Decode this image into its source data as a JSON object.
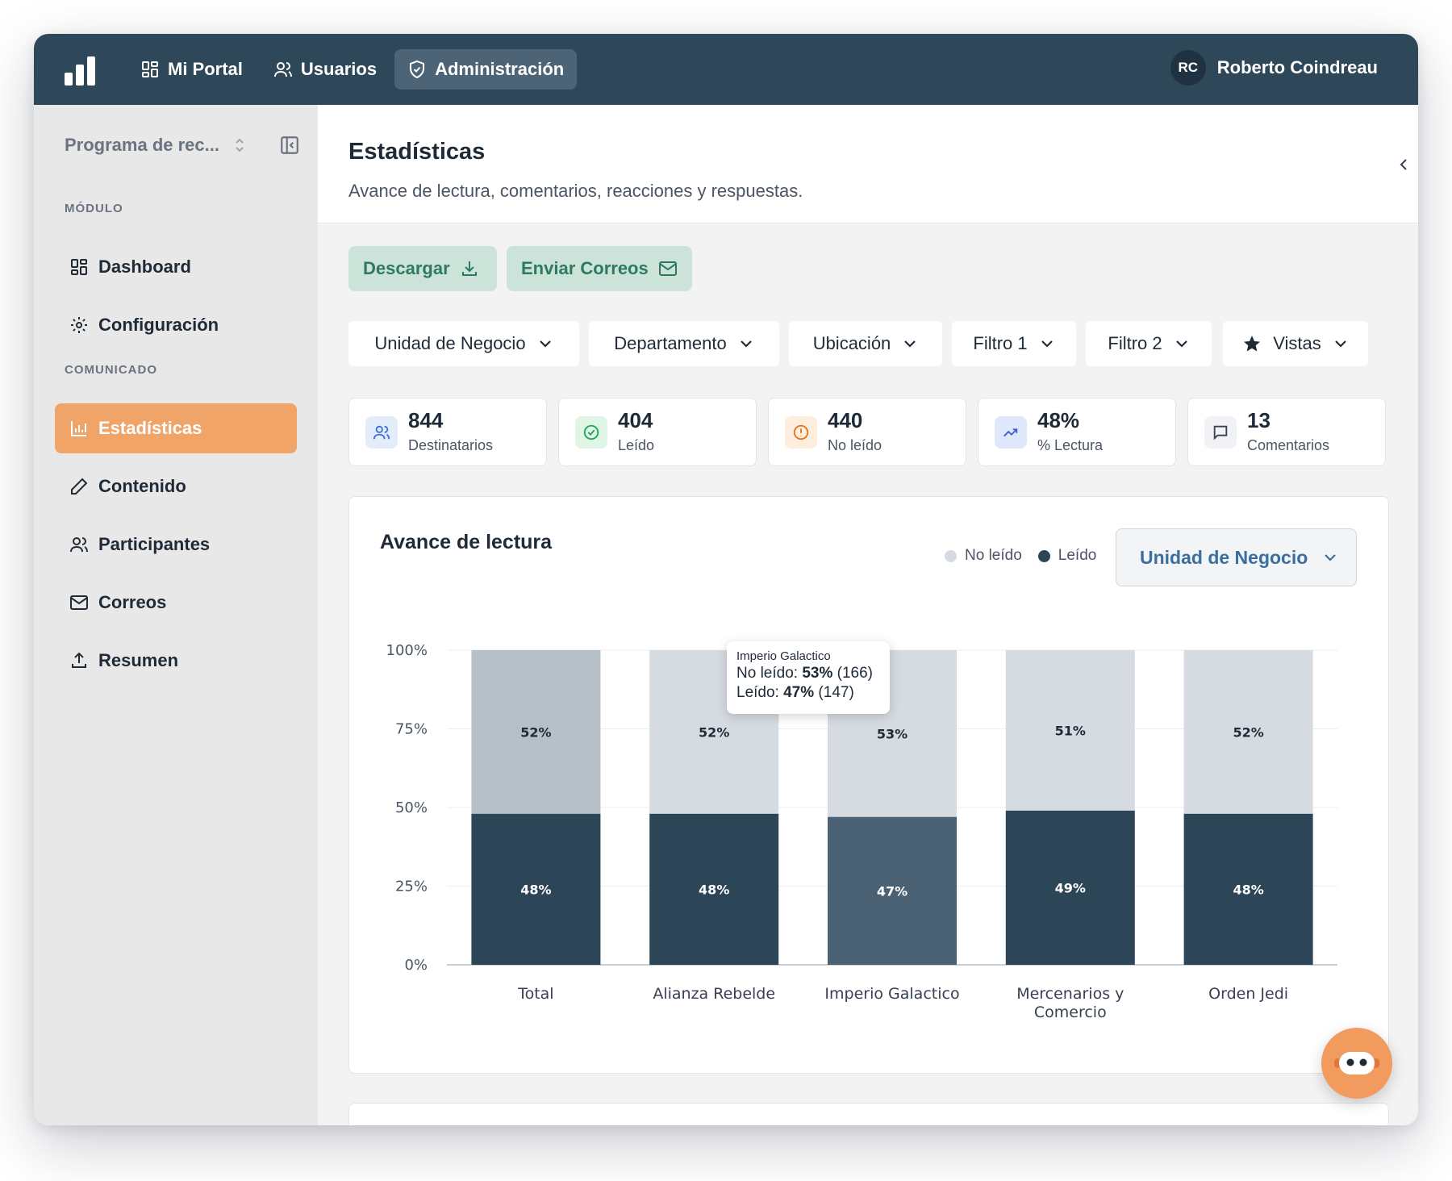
{
  "topbar": {
    "nav": [
      {
        "label": "Mi Portal",
        "icon": "grid-icon"
      },
      {
        "label": "Usuarios",
        "icon": "users-icon"
      },
      {
        "label": "Administración",
        "icon": "shield-check-icon"
      }
    ],
    "user": {
      "initials": "RC",
      "name": "Roberto Coindreau"
    }
  },
  "sidebar": {
    "program": "Programa de rec...",
    "sections": [
      {
        "label": "MÓDULO"
      },
      {
        "label": "COMUNICADO"
      }
    ],
    "items": [
      {
        "label": "Dashboard",
        "icon": "dashboard-icon"
      },
      {
        "label": "Configuración",
        "icon": "gear-icon"
      },
      {
        "label": "Estadísticas",
        "icon": "bar-chart-icon"
      },
      {
        "label": "Contenido",
        "icon": "pencil-icon"
      },
      {
        "label": "Participantes",
        "icon": "users-icon"
      },
      {
        "label": "Correos",
        "icon": "mail-icon"
      },
      {
        "label": "Resumen",
        "icon": "upload-icon"
      }
    ],
    "active_item": "Estadísticas"
  },
  "header": {
    "title": "Estadísticas",
    "subtitle": "Avance de lectura, comentarios, reacciones y respuestas."
  },
  "actions": {
    "download": "Descargar",
    "send_emails": "Enviar Correos"
  },
  "filters": [
    "Unidad de Negocio",
    "Departamento",
    "Ubicación",
    "Filtro 1",
    "Filtro 2",
    "Vistas"
  ],
  "stats": [
    {
      "value": "844",
      "label": "Destinatarios",
      "icon": "users-icon"
    },
    {
      "value": "404",
      "label": "Leído",
      "icon": "check-circle-icon"
    },
    {
      "value": "440",
      "label": "No leído",
      "icon": "alert-circle-icon"
    },
    {
      "value": "48%",
      "label": "% Lectura",
      "icon": "trending-up-icon"
    },
    {
      "value": "13",
      "label": "Comentarios",
      "icon": "comment-icon"
    }
  ],
  "chart_card": {
    "title": "Avance de lectura",
    "legend": [
      "No leído",
      "Leído"
    ],
    "group_select": "Unidad de Negocio",
    "tooltip": {
      "title": "Imperio Galactico",
      "no_leido_label": "No leído:",
      "no_leido_pct": "53%",
      "no_leido_count": "(166)",
      "leido_label": "Leído:",
      "leido_pct": "47%",
      "leido_count": "(147)"
    }
  },
  "colors": {
    "leido": "#2d4657",
    "leido_highlight": "#4a6073",
    "no_leido": "#d5dbe1",
    "no_leido_highlight": "#b7c0c6",
    "accent_orange": "#f0a468",
    "topbar": "#2e4759"
  },
  "chart_data": {
    "type": "bar",
    "stacked": true,
    "categories": [
      "Total",
      "Alianza Rebelde",
      "Imperio Galactico",
      "Mercenarios y Comercio",
      "Orden Jedi"
    ],
    "series": [
      {
        "name": "Leído",
        "values": [
          48,
          48,
          47,
          49,
          48
        ]
      },
      {
        "name": "No leído",
        "values": [
          52,
          52,
          53,
          51,
          52
        ]
      }
    ],
    "y_ticks": [
      "0%",
      "25%",
      "50%",
      "75%",
      "100%"
    ],
    "ylim": [
      0,
      100
    ],
    "grid": true,
    "legend": "top-right"
  }
}
